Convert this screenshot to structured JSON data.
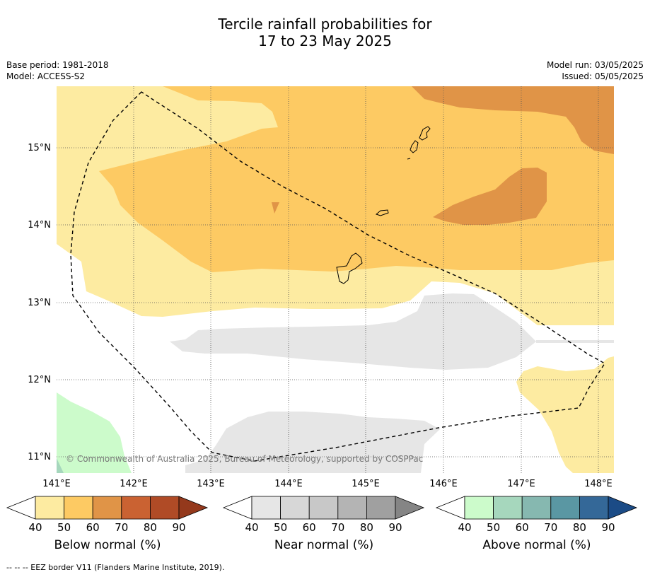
{
  "title": {
    "line1": "Tercile rainfall probabilities for",
    "line2": "17 to 23 May 2025"
  },
  "meta": {
    "base_period": "Base period: 1981-2018",
    "model": "Model: ACCESS-S2",
    "model_run": "Model run: 03/05/2025",
    "issued": "Issued: 05/05/2025"
  },
  "map": {
    "lat_labels": [
      "15°N",
      "14°N",
      "13°N",
      "12°N",
      "11°N"
    ],
    "lon_labels": [
      "141°E",
      "142°E",
      "143°E",
      "144°E",
      "145°E",
      "146°E",
      "147°E",
      "148°E"
    ],
    "copyright": "© Commonwealth of Australia 2025, Bureau of Meteorology, supported by COSPPac"
  },
  "colorbars": [
    {
      "name": "Below normal (%)",
      "ticks": [
        "40",
        "50",
        "60",
        "70",
        "80",
        "90"
      ],
      "colors": [
        "#fdeba1",
        "#fdca63",
        "#e09447",
        "#ca6232",
        "#b04b26",
        "#94391c"
      ]
    },
    {
      "name": "Near normal (%)",
      "ticks": [
        "40",
        "50",
        "60",
        "70",
        "80",
        "90"
      ],
      "colors": [
        "#e6e6e6",
        "#d7d7d7",
        "#c8c8c8",
        "#b4b4b4",
        "#a0a0a0",
        "#858585"
      ]
    },
    {
      "name": "Above normal (%)",
      "ticks": [
        "40",
        "50",
        "60",
        "70",
        "80",
        "90"
      ],
      "colors": [
        "#ccfbcb",
        "#a6d7bd",
        "#86b8b0",
        "#5a97a3",
        "#346898",
        "#1b4b86"
      ]
    }
  ],
  "footer": "--  --  -- EEZ border V11 (Flanders Marine Institute, 2019)."
}
